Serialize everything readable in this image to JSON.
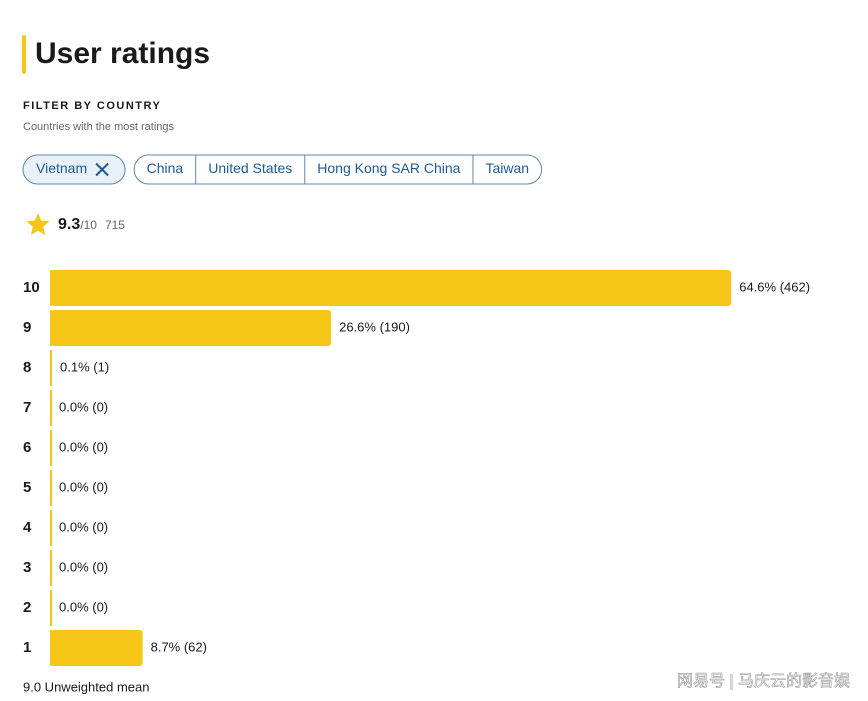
{
  "header": {
    "title": "User ratings"
  },
  "filter": {
    "label": "FILTER BY COUNTRY",
    "subtitle": "Countries with the most ratings",
    "selected": "Vietnam",
    "options": [
      "China",
      "United States",
      "Hong Kong SAR China",
      "Taiwan"
    ]
  },
  "rating": {
    "score": 9.3,
    "scale": "/10",
    "count": 715
  },
  "chart_data": {
    "type": "bar",
    "orientation": "horizontal",
    "categories": [
      "10",
      "9",
      "8",
      "7",
      "6",
      "5",
      "4",
      "3",
      "2",
      "1"
    ],
    "values": [
      64.6,
      26.6,
      0.1,
      0.0,
      0.0,
      0.0,
      0.0,
      0.0,
      0.0,
      8.7
    ],
    "value_labels": [
      "64.6% (462)",
      "26.6% (190)",
      "0.1% (1)",
      "0.0% (0)",
      "0.0% (0)",
      "0.0% (0)",
      "0.0% (0)",
      "0.0% (0)",
      "0.0% (0)",
      "8.7% (62)"
    ],
    "color": "#f5c518",
    "xlim": [
      0,
      100
    ]
  },
  "footer": {
    "mean": "9.0 Unweighted mean"
  },
  "watermark": "网易号 | 马庆云的影音娱"
}
